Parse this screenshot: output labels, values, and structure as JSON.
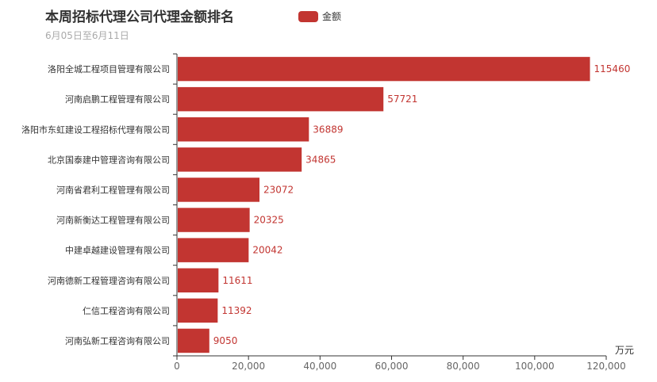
{
  "title": "本周招标代理公司代理金额排名",
  "subtitle": "6月05日至6月11日",
  "legend": {
    "label": "金额"
  },
  "colors": {
    "bar": "#c23531",
    "axis": "#333333",
    "tick_label": "#666666"
  },
  "chart_data": {
    "type": "bar",
    "orientation": "horizontal",
    "unit": "万元",
    "xlim": [
      0,
      120000
    ],
    "x_ticks": [
      "0",
      "20,000",
      "40,000",
      "60,000",
      "80,000",
      "100,000",
      "120,000"
    ],
    "grid": false,
    "legend_position": "top-center",
    "series": [
      {
        "name": "金额",
        "values": [
          115460,
          57721,
          36889,
          34865,
          23072,
          20325,
          20042,
          11611,
          11392,
          9050
        ]
      }
    ],
    "categories": [
      "洛阳全城工程项目管理有限公司",
      "河南启鹏工程管理有限公司",
      "洛阳市东虹建设工程招标代理有限公司",
      "北京国泰建中管理咨询有限公司",
      "河南省君利工程管理有限公司",
      "河南新衡达工程管理有限公司",
      "中建卓越建设管理有限公司",
      "河南德新工程管理咨询有限公司",
      "仁信工程咨询有限公司",
      "河南弘新工程咨询有限公司"
    ]
  }
}
